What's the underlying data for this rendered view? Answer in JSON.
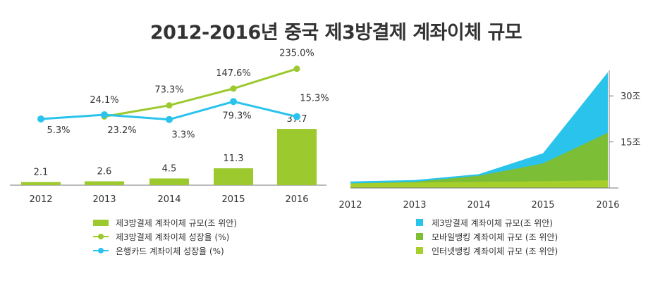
{
  "title": "2012-2016년 중국 제3방결제 계좌이체 규모",
  "colors": {
    "bar": "#9BC92E",
    "line_growth": "#9BC92E",
    "line_bankcard": "#29C3EC",
    "area_third_party": "#29C3EC",
    "area_mobile": "#7DBE37",
    "area_internet": "#A6CF2B",
    "axis": "#777777"
  },
  "chart_data": [
    {
      "type": "bar+line",
      "categories": [
        "2012",
        "2013",
        "2014",
        "2015",
        "2016"
      ],
      "series": [
        {
          "name": "제3방결제 계좌이체 규모(조 위안)",
          "kind": "bar",
          "values": [
            2.1,
            2.6,
            4.5,
            11.3,
            37.7
          ],
          "labels": [
            "2.1",
            "2.6",
            "4.5",
            "11.3",
            "37.7"
          ]
        },
        {
          "name": "제3방결제 계좌이체 성장율 (%)",
          "kind": "line",
          "values": [
            null,
            24.1,
            73.3,
            147.6,
            235.0
          ],
          "labels": [
            "",
            "24.1%",
            "73.3%",
            "147.6%",
            "235.0%"
          ]
        },
        {
          "name": "은행카드 계좌이체 성장율 (%)",
          "kind": "line",
          "values": [
            5.3,
            23.2,
            3.3,
            79.3,
            15.3
          ],
          "labels": [
            "5.3%",
            "23.2%",
            "3.3%",
            "79.3%",
            "15.3%"
          ]
        }
      ]
    },
    {
      "type": "area",
      "categories": [
        "2012",
        "2013",
        "2014",
        "2015",
        "2016"
      ],
      "yticks": [
        15,
        30
      ],
      "ytick_labels": [
        "15조",
        "30조"
      ],
      "series": [
        {
          "name": "제3방결제 계좌이체 규모(조 위안)",
          "values": [
            2.1,
            2.6,
            4.5,
            11.3,
            37.7
          ]
        },
        {
          "name": "모바일뱅킹 계좌이체 규모 (조 위안)",
          "values": [
            1.5,
            2.0,
            4.0,
            8.0,
            18.0
          ]
        },
        {
          "name": "인터넷뱅킹 계좌이체 규모 (조 위안)",
          "values": [
            1.5,
            1.8,
            2.0,
            2.2,
            2.5
          ]
        }
      ]
    }
  ],
  "legend_left": [
    {
      "label": "제3방결제 계좌이체 규모(조 위안)",
      "kind": "bar"
    },
    {
      "label": "제3방결제 계좌이체 성장율 (%)",
      "kind": "line"
    },
    {
      "label": "은행카드 계좌이체 성장율 (%)",
      "kind": "line"
    }
  ],
  "legend_right": [
    {
      "label": "제3방결제 계좌이체 규모(조 위안)"
    },
    {
      "label": "모바일뱅킹 계좌이체 규모 (조 위안)"
    },
    {
      "label": "인터넷뱅킹 계좌이체 규모 (조 위안)"
    }
  ]
}
